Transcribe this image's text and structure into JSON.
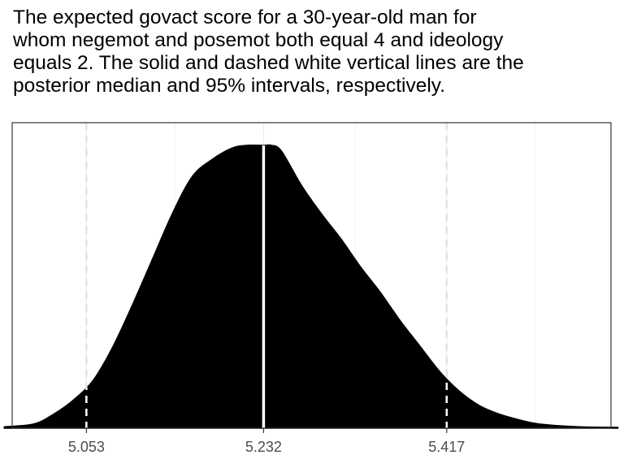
{
  "title_lines": [
    "The expected govact score for a 30-year-old man for",
    "whom negemot and posemot both equal 4 and ideology",
    "equals 2. The solid and dashed white vertical lines are the",
    "posterior median and 95% intervals, respectively."
  ],
  "chart_data": {
    "type": "area",
    "x_tick_labels": [
      "5.053",
      "5.232",
      "5.417"
    ],
    "x_ticks": [
      5.053,
      5.232,
      5.417
    ],
    "xlim": [
      4.978,
      5.583
    ],
    "ylim": [
      0,
      1.08
    ],
    "grid": true,
    "median": 5.232,
    "interval_95": [
      5.053,
      5.417
    ],
    "density": {
      "x": [
        4.97,
        5.0,
        5.02,
        5.04,
        5.06,
        5.08,
        5.1,
        5.12,
        5.14,
        5.16,
        5.18,
        5.2,
        5.215,
        5.232,
        5.24,
        5.25,
        5.27,
        5.29,
        5.31,
        5.33,
        5.35,
        5.37,
        5.39,
        5.41,
        5.43,
        5.45,
        5.47,
        5.49,
        5.51,
        5.55,
        5.59
      ],
      "y": [
        0.005,
        0.015,
        0.05,
        0.1,
        0.17,
        0.29,
        0.44,
        0.6,
        0.76,
        0.89,
        0.95,
        0.99,
        1.0,
        1.0,
        1.0,
        0.98,
        0.86,
        0.76,
        0.67,
        0.57,
        0.48,
        0.38,
        0.29,
        0.2,
        0.13,
        0.08,
        0.05,
        0.03,
        0.015,
        0.005,
        0.003
      ]
    },
    "fill_color": "#000000",
    "line_color": "#ffffff"
  }
}
